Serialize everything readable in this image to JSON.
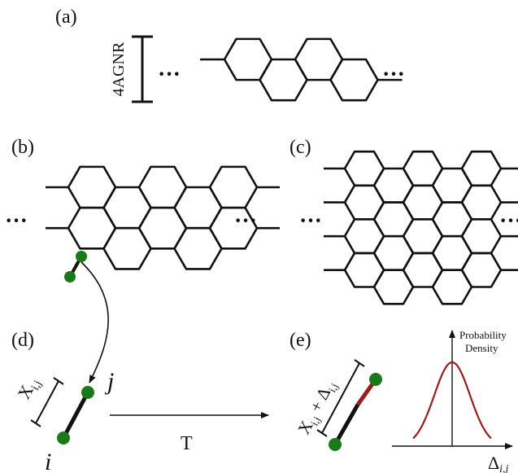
{
  "panels": {
    "a": "(a)",
    "b": "(b)",
    "c": "(c)",
    "d": "(d)",
    "e": "(e)"
  },
  "ribbon_label": "4AGNR",
  "ellipsis": "···",
  "node_i": "i",
  "node_j": "j",
  "bond_length": {
    "base": "X",
    "sub": "i,j"
  },
  "perturbed_length": {
    "base": "X",
    "sub": "i,j",
    "plus": " + Δ",
    "sub2": "i,j"
  },
  "transform_label": "T",
  "density": {
    "ylabel_line1": "Probability",
    "ylabel_line2": "Density",
    "xlabel_base": "Δ",
    "xlabel_sub": "i,j"
  },
  "colors": {
    "line": "#111111",
    "atom": "#1a7a1a",
    "curve": "#9c1c1c",
    "delta_segment": "#9c1c1c"
  }
}
